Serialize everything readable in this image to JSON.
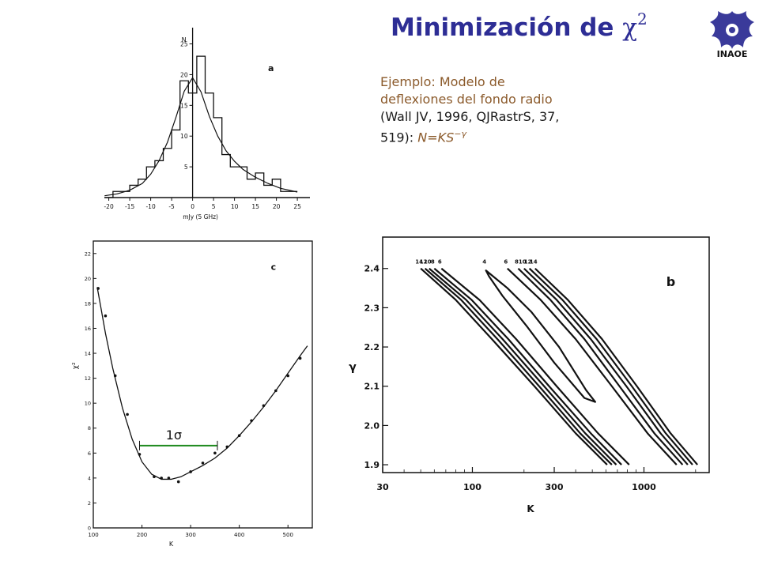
{
  "title": {
    "text": "Minimización de ",
    "symbol": "χ",
    "exponent": "2"
  },
  "logo": {
    "text": "INAOE",
    "color": "#3a3a9a"
  },
  "caption": {
    "line1": "Ejemplo: Modelo de",
    "line2": "deflexiones del fondo radio",
    "line3": "(Wall JV, 1996, QJRastrS, 37,",
    "line4a": "519): ",
    "line4b": "N=KS",
    "line4sup": "−γ"
  },
  "chart_data": [
    {
      "panel": "a",
      "type": "histogram",
      "panel_label": "a",
      "xlabel": "mJy (5 GHz)",
      "ylabel": "N",
      "xlim": [
        -22,
        28
      ],
      "ylim": [
        0,
        27
      ],
      "xticks": [
        -20,
        -15,
        -10,
        -5,
        0,
        5,
        10,
        15,
        20,
        25
      ],
      "yticks": [
        5,
        10,
        15,
        20,
        25
      ],
      "bins": {
        "edges": [
          -21,
          -19,
          -17,
          -15,
          -13,
          -11,
          -9,
          -7,
          -5,
          -3,
          -1,
          1,
          3,
          5,
          7,
          9,
          11,
          13,
          15,
          17,
          19,
          21,
          23,
          25
        ],
        "counts": [
          0,
          1,
          1,
          2,
          3,
          5,
          6,
          8,
          11,
          19,
          17,
          23,
          17,
          13,
          7,
          5,
          5,
          3,
          4,
          2,
          3,
          1,
          1
        ]
      },
      "fit_curve": {
        "x": [
          -21,
          -18,
          -15,
          -12,
          -10,
          -8,
          -6,
          -4,
          -2,
          0,
          2,
          4,
          6,
          8,
          10,
          12,
          15,
          18,
          21,
          25
        ],
        "y": [
          0.3,
          0.6,
          1.2,
          2.3,
          3.8,
          6.0,
          9.0,
          13.0,
          17.3,
          19.5,
          17.2,
          13.2,
          10.0,
          7.6,
          5.9,
          4.6,
          3.3,
          2.3,
          1.5,
          0.9
        ]
      }
    },
    {
      "panel": "c",
      "type": "line",
      "panel_label": "c",
      "xlabel": "K",
      "ylabel": "χ²",
      "xlim": [
        100,
        550
      ],
      "ylim": [
        0,
        23
      ],
      "xticks": [
        100,
        200,
        300,
        400,
        500
      ],
      "yticks": [
        0,
        2,
        4,
        6,
        8,
        10,
        12,
        14,
        16,
        18,
        20,
        22
      ],
      "points": {
        "x": [
          110,
          125,
          145,
          170,
          195,
          225,
          240,
          255,
          275,
          300,
          325,
          350,
          375,
          400,
          425,
          450,
          475,
          500,
          525
        ],
        "y": [
          19.2,
          17.0,
          12.2,
          9.1,
          5.9,
          4.1,
          4.0,
          4.0,
          3.7,
          4.5,
          5.2,
          6.0,
          6.5,
          7.4,
          8.6,
          9.8,
          11.0,
          12.2,
          13.6
        ]
      },
      "curve": {
        "x": [
          108,
          115,
          125,
          140,
          160,
          180,
          200,
          220,
          240,
          260,
          280,
          300,
          325,
          350,
          375,
          400,
          425,
          450,
          475,
          500,
          525,
          540
        ],
        "y": [
          19.3,
          17.8,
          15.6,
          12.8,
          9.6,
          7.1,
          5.3,
          4.3,
          3.9,
          3.9,
          4.1,
          4.5,
          5.0,
          5.6,
          6.4,
          7.4,
          8.5,
          9.7,
          11.0,
          12.4,
          13.8,
          14.6
        ]
      },
      "annotation": {
        "label": "1σ",
        "x_from": 195,
        "x_to": 355,
        "y": 6.6,
        "color": "#1e8a1e"
      }
    },
    {
      "panel": "b",
      "type": "line",
      "panel_label": "b",
      "xlabel": "K",
      "ylabel": "γ",
      "xscale": "log",
      "xlim": [
        30,
        2400
      ],
      "ylim": [
        1.88,
        2.48
      ],
      "xticks": [
        30,
        100,
        300,
        1000
      ],
      "yticks": [
        1.9,
        2.0,
        2.1,
        2.2,
        2.3,
        2.4
      ],
      "contour_labels": [
        "14",
        "12",
        "10",
        "8",
        "6",
        "4",
        "6",
        "8",
        "10",
        "12",
        "14"
      ],
      "contours": [
        {
          "label": "14",
          "x": [
            50,
            80,
            130,
            230,
            400,
            610
          ],
          "y": [
            2.4,
            2.32,
            2.22,
            2.1,
            1.98,
            1.9
          ]
        },
        {
          "label": "12",
          "x": [
            53,
            86,
            140,
            245,
            425,
            650
          ],
          "y": [
            2.4,
            2.32,
            2.22,
            2.1,
            1.98,
            1.9
          ]
        },
        {
          "label": "10",
          "x": [
            56,
            92,
            150,
            262,
            455,
            690
          ],
          "y": [
            2.4,
            2.32,
            2.22,
            2.1,
            1.98,
            1.9
          ]
        },
        {
          "label": "8",
          "x": [
            60,
            99,
            162,
            280,
            490,
            740
          ],
          "y": [
            2.4,
            2.32,
            2.22,
            2.1,
            1.98,
            1.9
          ]
        },
        {
          "label": "6",
          "x": [
            66,
            110,
            180,
            310,
            540,
            820
          ],
          "y": [
            2.4,
            2.32,
            2.22,
            2.1,
            1.98,
            1.9
          ]
        },
        {
          "label": "4",
          "closed": true,
          "x": [
            120,
            160,
            220,
            320,
            460,
            520,
            450,
            300,
            210,
            150,
            125,
            120
          ],
          "y": [
            2.395,
            2.35,
            2.29,
            2.2,
            2.09,
            2.06,
            2.07,
            2.16,
            2.25,
            2.33,
            2.38,
            2.395
          ]
        },
        {
          "label": "6",
          "x": [
            160,
            250,
            400,
            650,
            1050,
            1550
          ],
          "y": [
            2.4,
            2.32,
            2.22,
            2.1,
            1.98,
            1.9
          ]
        },
        {
          "label": "8",
          "x": [
            185,
            285,
            450,
            720,
            1150,
            1680
          ],
          "y": [
            2.4,
            2.32,
            2.22,
            2.1,
            1.98,
            1.9
          ]
        },
        {
          "label": "10",
          "x": [
            200,
            310,
            490,
            790,
            1250,
            1800
          ],
          "y": [
            2.4,
            2.32,
            2.22,
            2.1,
            1.98,
            1.9
          ]
        },
        {
          "label": "12",
          "x": [
            215,
            335,
            530,
            850,
            1340,
            1920
          ],
          "y": [
            2.4,
            2.32,
            2.22,
            2.1,
            1.98,
            1.9
          ]
        },
        {
          "label": "14",
          "x": [
            232,
            360,
            570,
            910,
            1430,
            2050
          ],
          "y": [
            2.4,
            2.32,
            2.22,
            2.1,
            1.98,
            1.9
          ]
        }
      ]
    }
  ]
}
